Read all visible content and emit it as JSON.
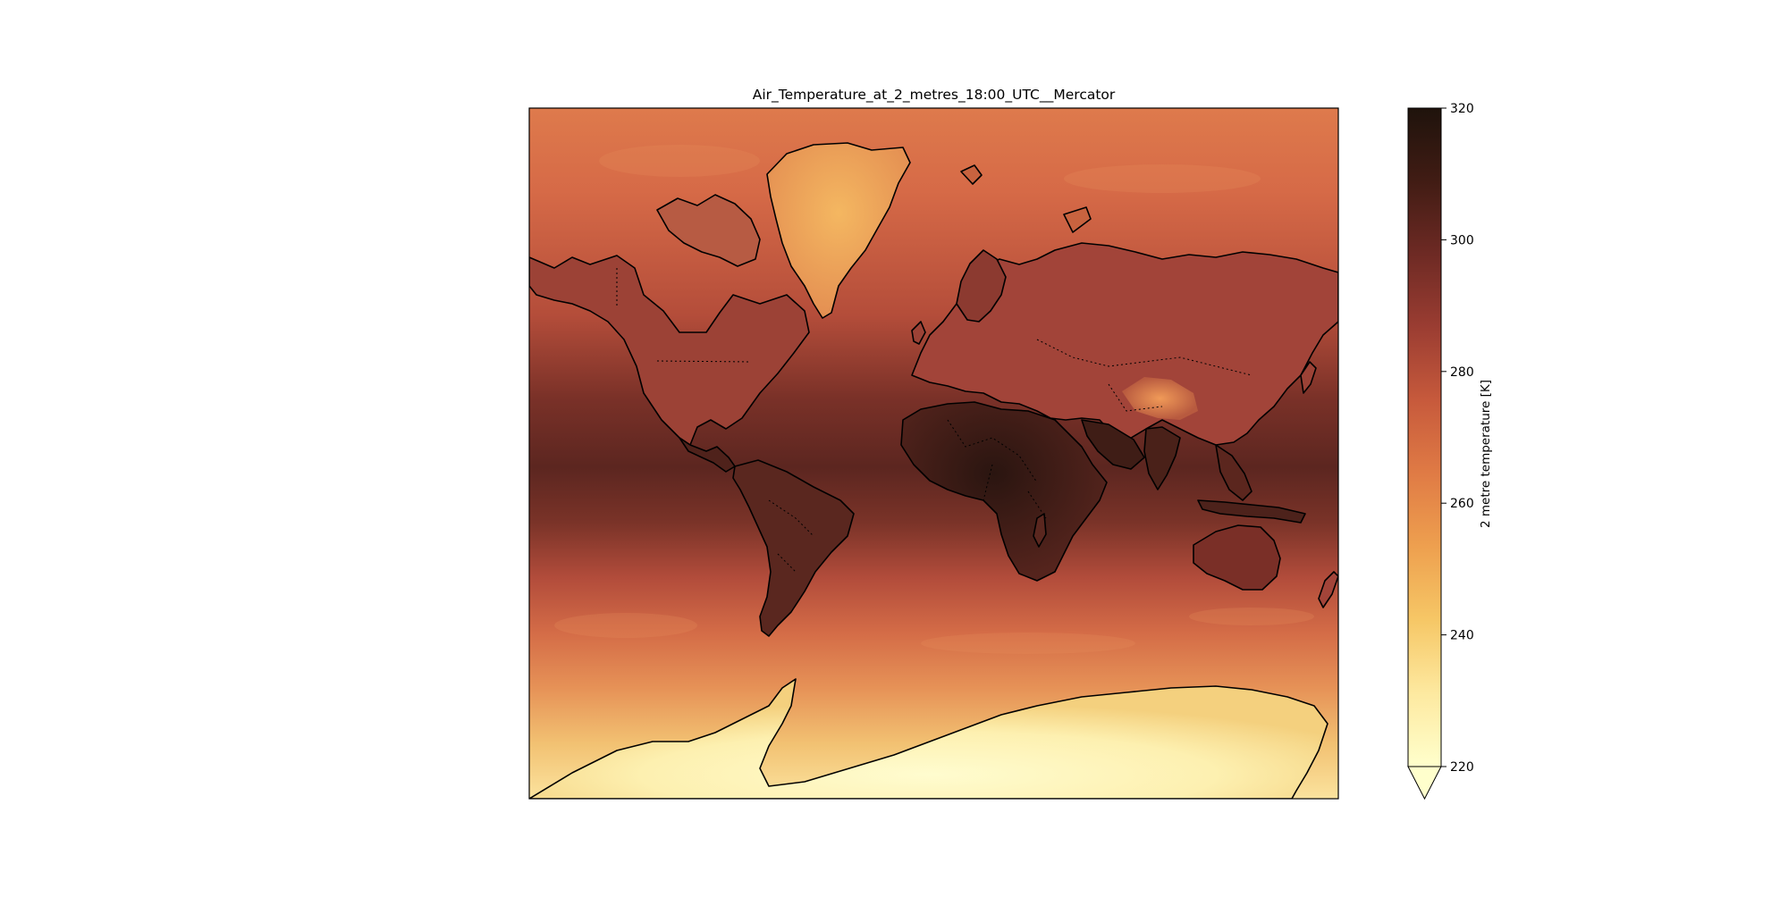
{
  "figure": {
    "title": "Air_Temperature_at_2_metres_18:00_UTC__Mercator",
    "projection": "Mercator",
    "coastlines": true,
    "country_borders": "dotted"
  },
  "colorbar": {
    "label": "2 metre temperature [K]",
    "vmin": 220,
    "vmax": 320,
    "ticks": [
      220,
      240,
      260,
      280,
      300,
      320
    ],
    "extend": "min",
    "colormap": [
      "#ffffcc",
      "#fde9a0",
      "#f6c766",
      "#eea04f",
      "#e07b45",
      "#c75a3c",
      "#9b3d32",
      "#6e2a24",
      "#411c14",
      "#1f130c"
    ]
  },
  "colors": {
    "ocean_mid_lat": "#d86c48",
    "tropics": "#6a2e26",
    "polar_cold": "#fff6c4",
    "coastline": "#000000"
  }
}
